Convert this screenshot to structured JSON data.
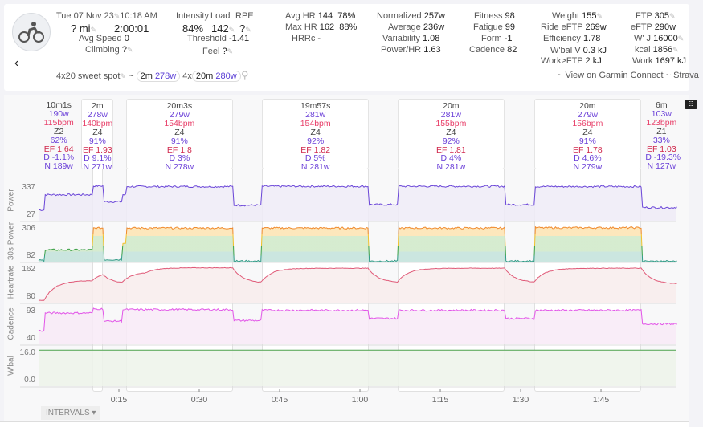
{
  "header": {
    "date": "Tue 07 Nov 23",
    "time": "10:18 AM",
    "distance": "? mi",
    "duration": "2:00:01",
    "avg_speed_label": "Avg Speed",
    "avg_speed": "0",
    "climbing_label": "Climbing",
    "climbing": "?",
    "intensity_label": "Intensity",
    "intensity": "84%",
    "load_label": "Load",
    "load": "142",
    "rpe_label": "RPE",
    "rpe": "?",
    "threshold_label": "Threshold",
    "threshold": "-1.41",
    "feel_label": "Feel",
    "feel": "?",
    "avg_hr_label": "Avg HR",
    "avg_hr": "144",
    "avg_hr_pct": "78%",
    "max_hr_label": "Max HR",
    "max_hr": "162",
    "max_hr_pct": "88%",
    "hrrc_label": "HRRc",
    "hrrc": "-",
    "normalized_label": "Normalized",
    "normalized": "257w",
    "average_label": "Average",
    "average": "236w",
    "variability_label": "Variability",
    "variability": "1.08",
    "power_hr_label": "Power/HR",
    "power_hr": "1.63",
    "fitness_label": "Fitness",
    "fitness": "98",
    "fatigue_label": "Fatigue",
    "fatigue": "99",
    "form_label": "Form",
    "form": "-1",
    "cadence_label": "Cadence",
    "cadence": "82",
    "weight_label": "Weight",
    "weight": "155",
    "ride_eftp_label": "Ride eFTP",
    "ride_eftp": "269w",
    "efficiency_label": "Efficiency",
    "efficiency": "1.78",
    "wbal_label": "W'bal ∇",
    "wbal": "0.3 kJ",
    "work_ftp_label": "Work>FTP",
    "work_ftp": "2 kJ",
    "ftp_label": "FTP",
    "ftp": "305",
    "eftp_label": "eFTP",
    "eftp": "290w",
    "wj_label": "W' J",
    "wj": "16000",
    "kcal_label": "kcal",
    "kcal": "1856",
    "work_label": "Work",
    "work": "1697 kJ",
    "name": "4x20 sweet spot",
    "chip1_dur": "2m",
    "chip1_w": "278w",
    "chip2_prefix": "4x",
    "chip2_dur": "20m",
    "chip2_w": "280w",
    "links": "~ View on Garmin Connect ~ Strava"
  },
  "chart_data": {
    "type": "line",
    "x_unit": "minutes",
    "xlim": [
      0,
      120
    ],
    "x_ticks": [
      {
        "v": 15,
        "label": "0:15"
      },
      {
        "v": 30,
        "label": "0:30"
      },
      {
        "v": 45,
        "label": "0:45"
      },
      {
        "v": 60,
        "label": "1:00"
      },
      {
        "v": 75,
        "label": "1:15"
      },
      {
        "v": 90,
        "label": "1:30"
      },
      {
        "v": 105,
        "label": "1:45"
      }
    ],
    "panels": [
      {
        "name": "Power",
        "ylim": [
          27,
          337
        ],
        "ticks": [
          "337",
          "27"
        ],
        "color": "#6a45d8",
        "fill": "#efebf7",
        "segments": [
          [
            0,
            1,
            120
          ],
          [
            1,
            10,
            250
          ],
          [
            10,
            12,
            325
          ],
          [
            12,
            15.6,
            190
          ],
          [
            15.6,
            16.3,
            250
          ],
          [
            16.3,
            36.3,
            320
          ],
          [
            36.3,
            41.7,
            160
          ],
          [
            41.7,
            61.7,
            322
          ],
          [
            61.7,
            67,
            165
          ],
          [
            67,
            87,
            322
          ],
          [
            87,
            92.5,
            165
          ],
          [
            92.5,
            112.5,
            320
          ],
          [
            112.5,
            120,
            140
          ]
        ]
      },
      {
        "name": "30s Power",
        "ylim": [
          82,
          306
        ],
        "ticks": [
          "306",
          "82"
        ],
        "color": "#f08a2c",
        "fill": "#fde7b8",
        "segments": [
          [
            0,
            1,
            90
          ],
          [
            1,
            10,
            155
          ],
          [
            10,
            12,
            290
          ],
          [
            12,
            15.6,
            95
          ],
          [
            15.6,
            16.3,
            200
          ],
          [
            16.3,
            36.3,
            290
          ],
          [
            36.3,
            41.7,
            85
          ],
          [
            41.7,
            61.7,
            290
          ],
          [
            61.7,
            67,
            85
          ],
          [
            67,
            87,
            290
          ],
          [
            87,
            92.5,
            85
          ],
          [
            92.5,
            112.5,
            292
          ],
          [
            112.5,
            120,
            84
          ]
        ]
      },
      {
        "name": "Heartrate",
        "ylim": [
          80,
          162
        ],
        "ticks": [
          "162",
          "80"
        ],
        "color": "#e05a78",
        "fill": "#f8ecec",
        "segments": [
          [
            0,
            1,
            85
          ],
          [
            1,
            10,
            130
          ],
          [
            10,
            12,
            152
          ],
          [
            12,
            15.6,
            122
          ],
          [
            15.6,
            20,
            150
          ],
          [
            20,
            36.3,
            159
          ],
          [
            36.3,
            41.7,
            124
          ],
          [
            41.7,
            61.7,
            158
          ],
          [
            61.7,
            67,
            125
          ],
          [
            67,
            87,
            158
          ],
          [
            87,
            92.5,
            125
          ],
          [
            92.5,
            112.5,
            158
          ],
          [
            112.5,
            120,
            122
          ]
        ]
      },
      {
        "name": "Cadence",
        "ylim": [
          40,
          93
        ],
        "ticks": [
          "93",
          "40"
        ],
        "color": "#e255e8",
        "fill": "#f8eaf7",
        "segments": [
          [
            0,
            1,
            60
          ],
          [
            1,
            10,
            86
          ],
          [
            10,
            12,
            92
          ],
          [
            12,
            15.6,
            74
          ],
          [
            15.6,
            36.3,
            91
          ],
          [
            36.3,
            41.7,
            75
          ],
          [
            41.7,
            61.7,
            90
          ],
          [
            61.7,
            67,
            78
          ],
          [
            67,
            87,
            90
          ],
          [
            87,
            92.5,
            78
          ],
          [
            92.5,
            112.5,
            90
          ],
          [
            112.5,
            120,
            70
          ]
        ]
      },
      {
        "name": "W'bal",
        "ylim": [
          0,
          16
        ],
        "ticks": [
          "16.0",
          "0.0"
        ],
        "color": "#4ca24c",
        "fill": "#edf3ea",
        "segments": [
          [
            0,
            120,
            15.9
          ]
        ]
      }
    ],
    "intervals": [
      {
        "start": 0,
        "end": 10,
        "highlight": false,
        "dur": "10m1s",
        "w": "190w",
        "bpm": "115bpm",
        "zone": "Z2",
        "pct": "62%",
        "ef": "EF 1.64",
        "d": "D -1.1%",
        "n": "N 189w"
      },
      {
        "start": 10,
        "end": 12,
        "highlight": true,
        "dur": "2m",
        "w": "278w",
        "bpm": "140bpm",
        "zone": "Z4",
        "pct": "91%",
        "ef": "EF 1.93",
        "d": "D 9.1%",
        "n": "N 271w"
      },
      {
        "start": 16.3,
        "end": 36.3,
        "highlight": true,
        "dur": "20m3s",
        "w": "279w",
        "bpm": "154bpm",
        "zone": "Z4",
        "pct": "91%",
        "ef": "EF 1.8",
        "d": "D 3%",
        "n": "N 278w"
      },
      {
        "start": 41.7,
        "end": 61.7,
        "highlight": true,
        "dur": "19m57s",
        "w": "281w",
        "bpm": "154bpm",
        "zone": "Z4",
        "pct": "92%",
        "ef": "EF 1.82",
        "d": "D 5%",
        "n": "N 281w"
      },
      {
        "start": 67,
        "end": 87,
        "highlight": true,
        "dur": "20m",
        "w": "281w",
        "bpm": "155bpm",
        "zone": "Z4",
        "pct": "92%",
        "ef": "EF 1.81",
        "d": "D 4%",
        "n": "N 281w"
      },
      {
        "start": 92.5,
        "end": 112.5,
        "highlight": true,
        "dur": "20m",
        "w": "279w",
        "bpm": "156bpm",
        "zone": "Z4",
        "pct": "91%",
        "ef": "EF 1.78",
        "d": "D 4.6%",
        "n": "N 279w"
      },
      {
        "start": 113.5,
        "end": 119.5,
        "highlight": false,
        "dur": "6m",
        "w": "103w",
        "bpm": "123bpm",
        "zone": "Z1",
        "pct": "33%",
        "ef": "EF 1.03",
        "d": "D -19.3%",
        "n": "N 127w"
      }
    ]
  },
  "footer": {
    "intervals_button": "INTERVALS"
  }
}
